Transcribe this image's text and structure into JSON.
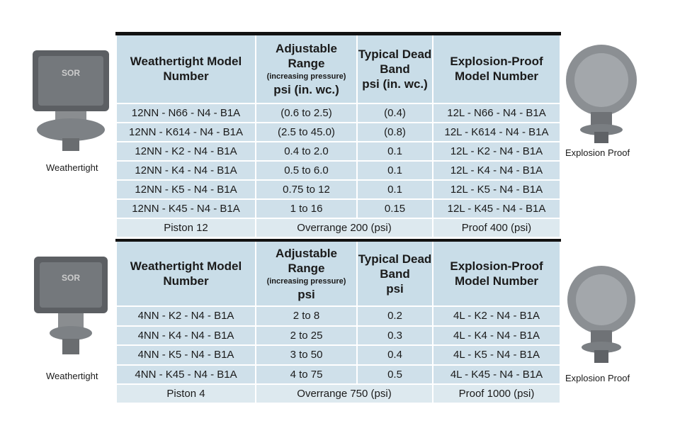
{
  "tables": [
    {
      "header": [
        {
          "title": "Weathertight Model Number"
        },
        {
          "title": "Adjustable Range",
          "note": "(increasing pressure)",
          "unit": "psi (in. wc.)"
        },
        {
          "title": "Typical Dead Band",
          "unit": "psi (in. wc.)"
        },
        {
          "title": "Explosion-Proof Model Number"
        }
      ],
      "rows": [
        [
          "12NN - N66 - N4 - B1A",
          "(0.6 to 2.5)",
          "(0.4)",
          "12L - N66 - N4 - B1A"
        ],
        [
          "12NN - K614 - N4 - B1A",
          "(2.5 to 45.0)",
          "(0.8)",
          "12L - K614 - N4 - B1A"
        ],
        [
          "12NN - K2 - N4 - B1A",
          "0.4 to 2.0",
          "0.1",
          "12L - K2 - N4 - B1A"
        ],
        [
          "12NN - K4 - N4 - B1A",
          "0.5 to 6.0",
          "0.1",
          "12L - K4 - N4 - B1A"
        ],
        [
          "12NN - K5 - N4 - B1A",
          "0.75 to 12",
          "0.1",
          "12L - K5 - N4 - B1A"
        ],
        [
          "12NN - K45 - N4 - B1A",
          "1 to 16",
          "0.15",
          "12L - K45 - N4 - B1A"
        ]
      ],
      "footer": [
        "Piston 12",
        "Overrange 200 (psi)",
        "Proof 400 (psi)"
      ]
    },
    {
      "header": [
        {
          "title": "Weathertight Model Number"
        },
        {
          "title": "Adjustable Range",
          "note": "(increasing pressure)",
          "unit": "psi"
        },
        {
          "title": "Typical Dead Band",
          "unit": "psi"
        },
        {
          "title": "Explosion-Proof Model Number"
        }
      ],
      "rows": [
        [
          "4NN - K2 - N4 - B1A",
          "2 to 8",
          "0.2",
          "4L - K2 - N4 - B1A"
        ],
        [
          "4NN - K4 - N4 - B1A",
          "2 to 25",
          "0.3",
          "4L - K4 - N4 - B1A"
        ],
        [
          "4NN - K5 - N4 - B1A",
          "3 to 50",
          "0.4",
          "4L - K5 - N4 - B1A"
        ],
        [
          "4NN - K45 - N4 - B1A",
          "4 to 75",
          "0.5",
          "4L - K45 - N4 - B1A"
        ]
      ],
      "footer": [
        "Piston 4",
        "Overrange 750 (psi)",
        "Proof 1000 (psi)"
      ]
    }
  ],
  "captions": [
    "Weathertight",
    "Explosion Proof",
    "Weathertight",
    "Explosion Proof"
  ]
}
